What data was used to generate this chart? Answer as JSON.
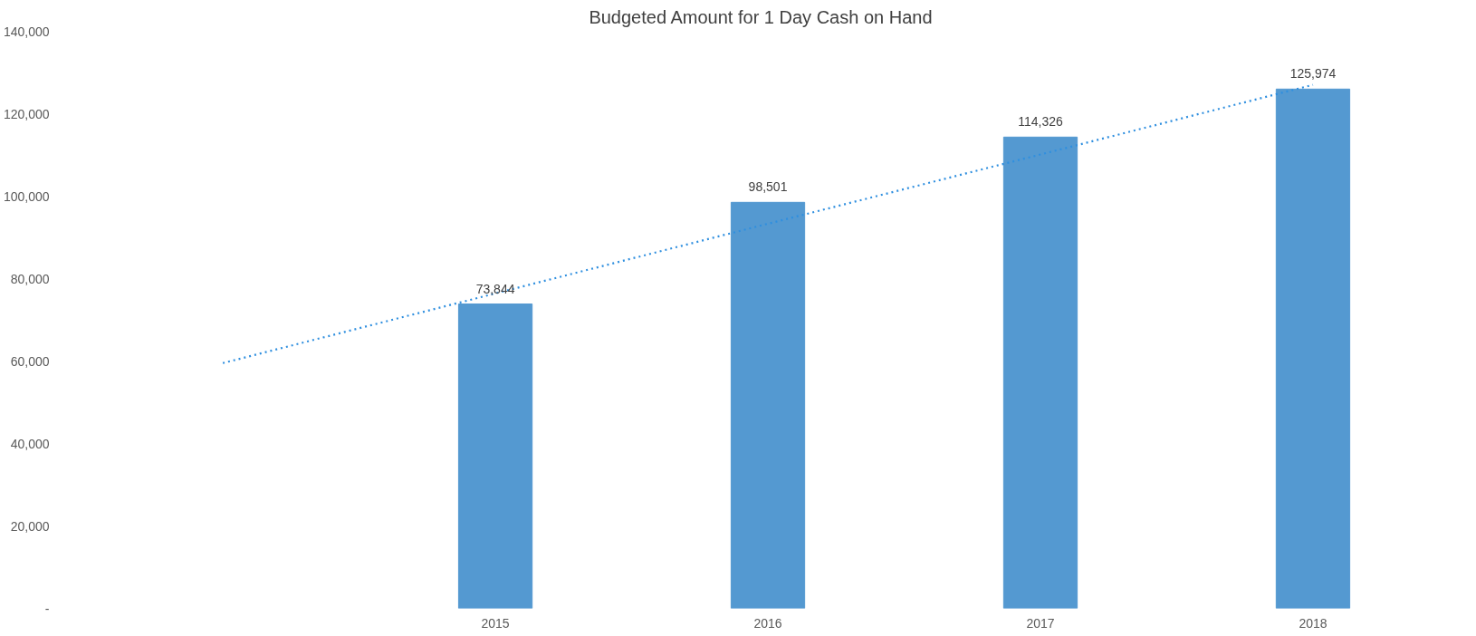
{
  "chart_data": {
    "type": "bar",
    "title": "Budgeted Amount for 1 Day Cash on Hand",
    "categories": [
      null,
      "2015",
      "2016",
      "2017",
      "2018"
    ],
    "series": [
      {
        "color": "#5499d1",
        "values": [
          null,
          73844,
          98501,
          114326,
          125974
        ],
        "value_labels": [
          null,
          "73,844",
          "98,501",
          "114,326",
          "125,974"
        ]
      },
      {
        "type": "line",
        "color": "#2f8fdf",
        "values": [
          59500,
          76400,
          93300,
          110100,
          127000
        ],
        "line_style": "dotted",
        "marker": "none"
      }
    ],
    "ylim": [
      0,
      140000
    ],
    "yticks": [
      {
        "value": 0,
        "label": "-"
      },
      {
        "value": 20000,
        "label": "20,000"
      },
      {
        "value": 40000,
        "label": "40,000"
      },
      {
        "value": 60000,
        "label": "60,000"
      },
      {
        "value": 80000,
        "label": "80,000"
      },
      {
        "value": 100000,
        "label": "100,000"
      },
      {
        "value": 120000,
        "label": "120,000"
      },
      {
        "value": 140000,
        "label": "140,000"
      }
    ],
    "grid": false,
    "legend": false
  }
}
